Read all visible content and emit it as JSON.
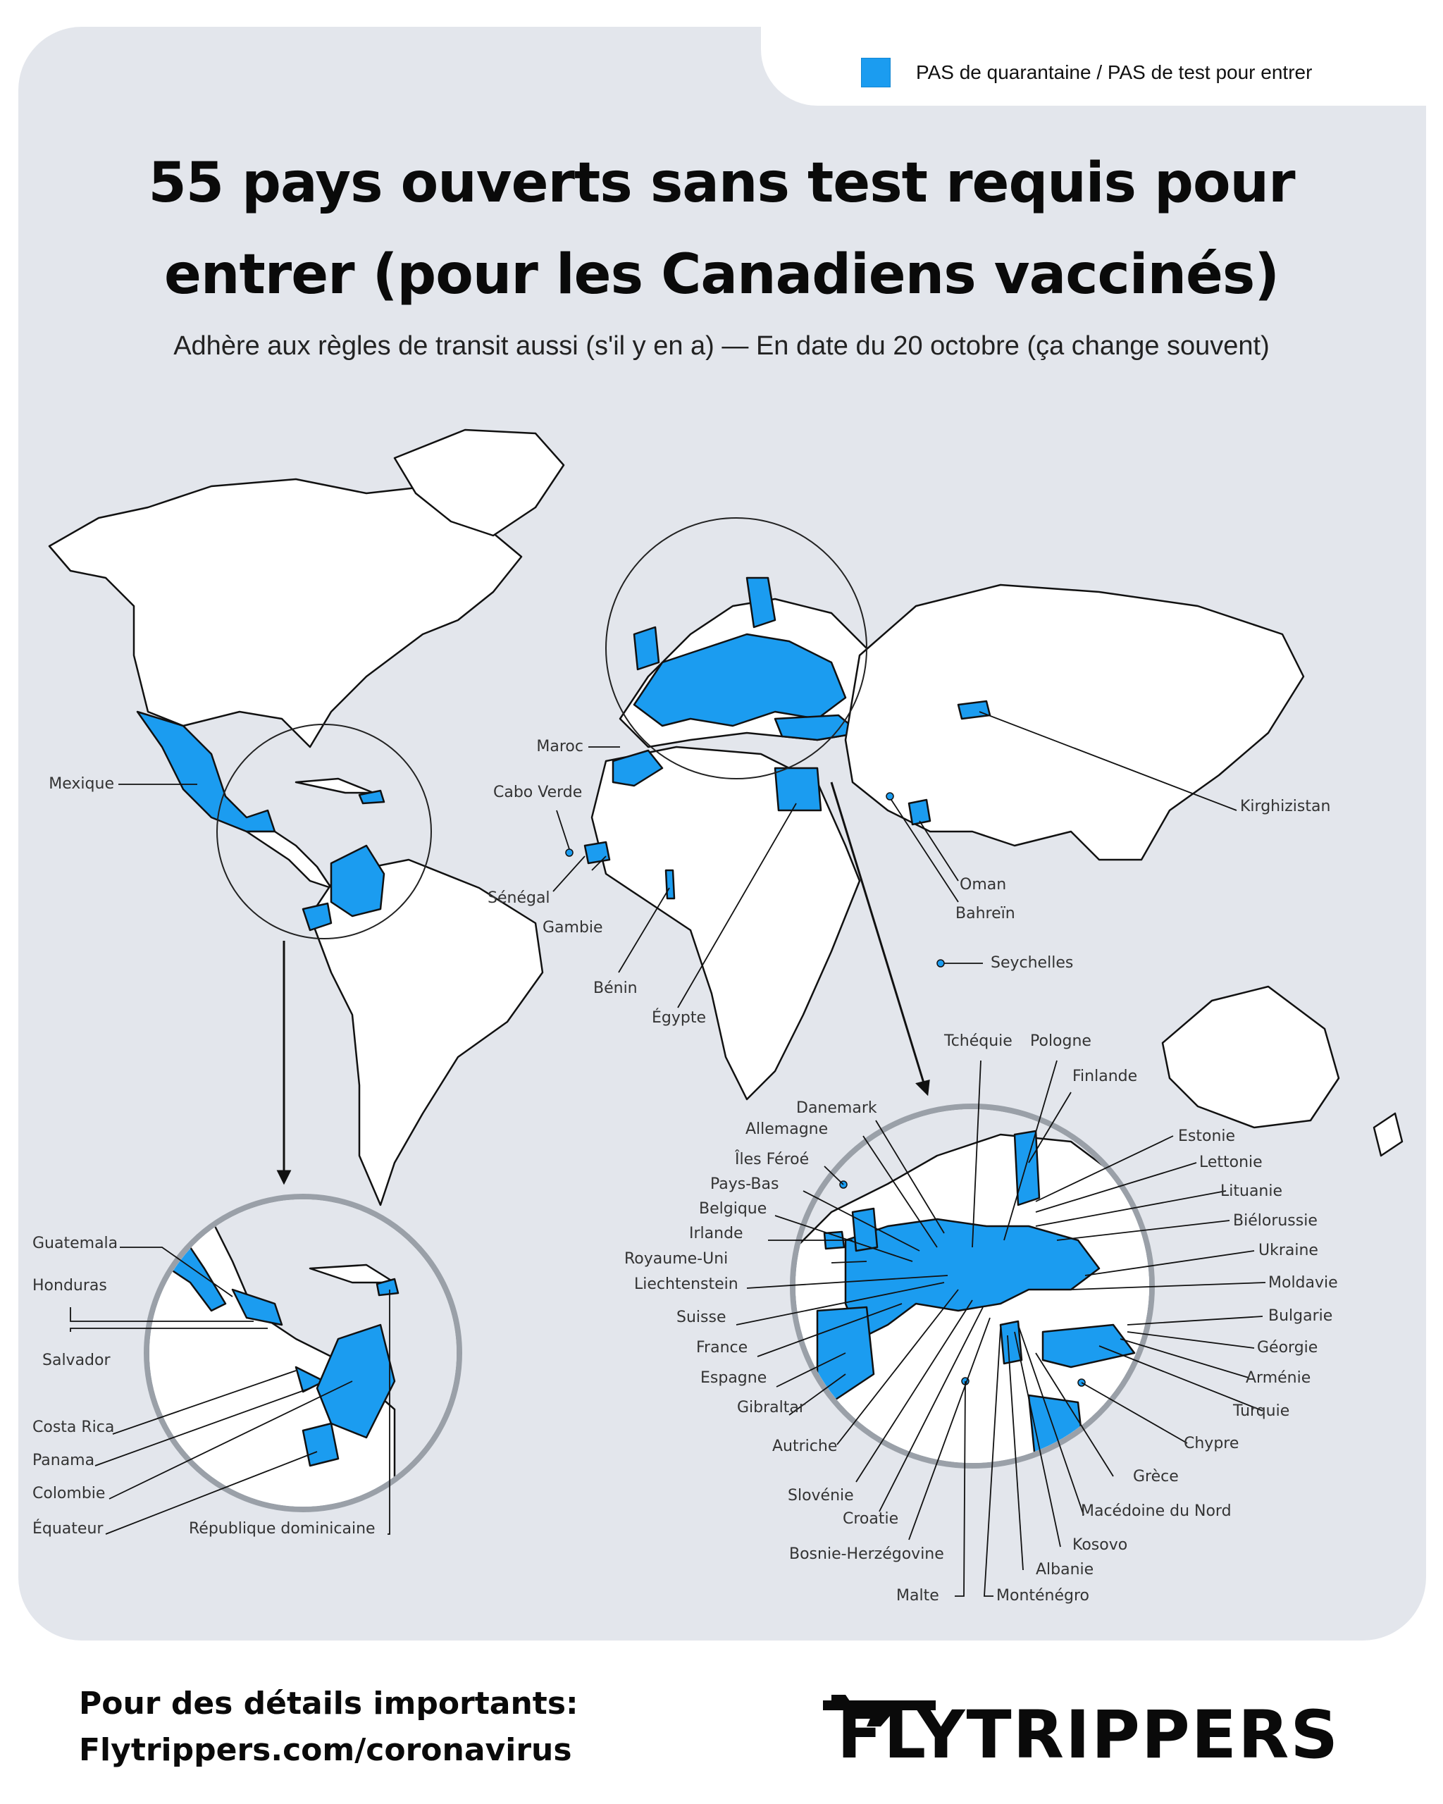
{
  "legend": {
    "label": "PAS de quarantaine / PAS de test pour entrer",
    "color": "#1b9cf0"
  },
  "title_line1": "55 pays ouverts sans test requis pour",
  "title_line2": "entrer (pour les Canadiens vaccinés)",
  "subtitle": "Adhère aux règles de transit aussi (s'il y en a) — En date du 20 octobre (ça change souvent)",
  "map_labels": {
    "mexique": "Mexique",
    "maroc": "Maroc",
    "cabo_verde": "Cabo Verde",
    "senegal": "Sénégal",
    "gambie": "Gambie",
    "benin": "Bénin",
    "egypte": "Égypte",
    "oman": "Oman",
    "bahrein": "Bahreïn",
    "seychelles": "Seychelles",
    "kirghizistan": "Kirghizistan"
  },
  "americas_labels": {
    "guatemala": "Guatemala",
    "honduras": "Honduras",
    "salvador": "Salvador",
    "costa_rica": "Costa Rica",
    "panama": "Panama",
    "colombie": "Colombie",
    "equateur": "Équateur",
    "rep_dom": "République dominicaine"
  },
  "europe_labels": {
    "tchequie": "Tchéquie",
    "pologne": "Pologne",
    "finlande": "Finlande",
    "danemark": "Danemark",
    "allemagne": "Allemagne",
    "iles_feroe": "Îles Féroé",
    "pays_bas": "Pays-Bas",
    "belgique": "Belgique",
    "irlande": "Irlande",
    "royaume_uni": "Royaume-Uni",
    "liechtenstein": "Liechtenstein",
    "suisse": "Suisse",
    "france": "France",
    "espagne": "Espagne",
    "gibraltar": "Gibraltar",
    "autriche": "Autriche",
    "slovenie": "Slovénie",
    "croatie": "Croatie",
    "bosnie": "Bosnie-Herzégovine",
    "malte": "Malte",
    "montenegro": "Monténégro",
    "albanie": "Albanie",
    "kosovo": "Kosovo",
    "macedoine": "Macédoine du Nord",
    "grece": "Grèce",
    "chypre": "Chypre",
    "turquie": "Turquie",
    "armenie": "Arménie",
    "georgie": "Géorgie",
    "bulgarie": "Bulgarie",
    "moldavie": "Moldavie",
    "ukraine": "Ukraine",
    "bielorussie": "Biélorussie",
    "lituanie": "Lituanie",
    "lettonie": "Lettonie",
    "estonie": "Estonie"
  },
  "footer": {
    "line1": "Pour des détails importants:",
    "line2": "Flytrippers.com/coronavirus"
  },
  "brand": "FLYTRIPPERS",
  "icons": {
    "brand_mark": "airplane-icon"
  }
}
